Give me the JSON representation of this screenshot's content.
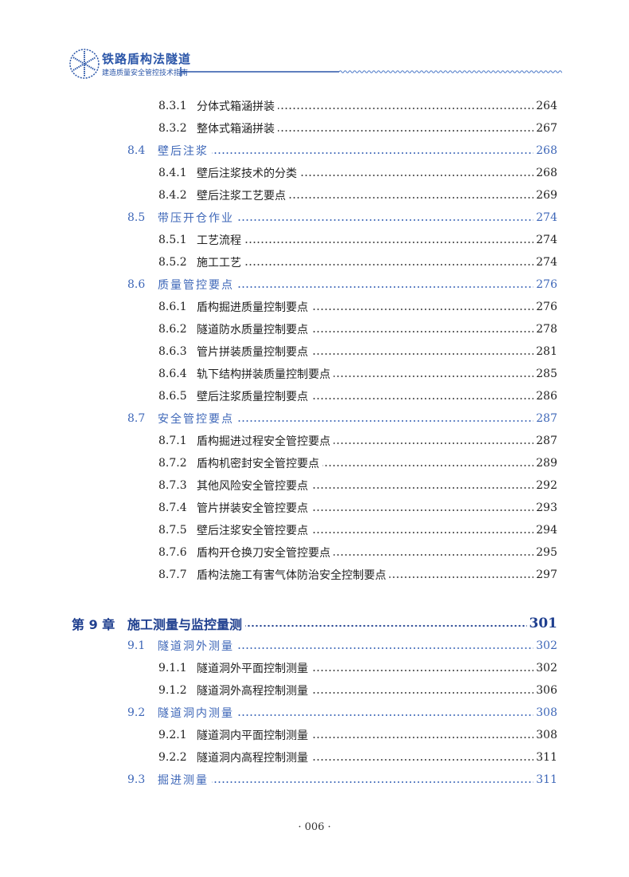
{
  "header": {
    "title": "铁路盾构法隧道",
    "subtitle": "建造质量安全管控技术指南",
    "logo_icon": "tunnel-segment-logo-icon",
    "accent_color": "#2a55a8"
  },
  "toc": [
    {
      "level": "sub",
      "num": "8.3.1",
      "title": "分体式箱涵拼装",
      "page": "264"
    },
    {
      "level": "sub",
      "num": "8.3.2",
      "title": "整体式箱涵拼装",
      "page": "267"
    },
    {
      "level": "sec",
      "num": "8.4",
      "title": "壁后注浆",
      "page": "268"
    },
    {
      "level": "sub",
      "num": "8.4.1",
      "title": "壁后注浆技术的分类",
      "page": "268"
    },
    {
      "level": "sub",
      "num": "8.4.2",
      "title": "壁后注浆工艺要点",
      "page": "269"
    },
    {
      "level": "sec",
      "num": "8.5",
      "title": "带压开仓作业",
      "page": "274"
    },
    {
      "level": "sub",
      "num": "8.5.1",
      "title": "工艺流程",
      "page": "274"
    },
    {
      "level": "sub",
      "num": "8.5.2",
      "title": "施工工艺",
      "page": "274"
    },
    {
      "level": "sec",
      "num": "8.6",
      "title": "质量管控要点",
      "page": "276"
    },
    {
      "level": "sub",
      "num": "8.6.1",
      "title": "盾构掘进质量控制要点",
      "page": "276"
    },
    {
      "level": "sub",
      "num": "8.6.2",
      "title": "隧道防水质量控制要点",
      "page": "278"
    },
    {
      "level": "sub",
      "num": "8.6.3",
      "title": "管片拼装质量控制要点",
      "page": "281"
    },
    {
      "level": "sub",
      "num": "8.6.4",
      "title": "轨下结构拼装质量控制要点",
      "page": "285"
    },
    {
      "level": "sub",
      "num": "8.6.5",
      "title": "壁后注浆质量控制要点",
      "page": "286"
    },
    {
      "level": "sec",
      "num": "8.7",
      "title": "安全管控要点",
      "page": "287"
    },
    {
      "level": "sub",
      "num": "8.7.1",
      "title": "盾构掘进过程安全管控要点",
      "page": "287"
    },
    {
      "level": "sub",
      "num": "8.7.2",
      "title": "盾构机密封安全管控要点",
      "page": "289"
    },
    {
      "level": "sub",
      "num": "8.7.3",
      "title": "其他风险安全管控要点",
      "page": "292"
    },
    {
      "level": "sub",
      "num": "8.7.4",
      "title": "管片拼装安全管控要点",
      "page": "293"
    },
    {
      "level": "sub",
      "num": "8.7.5",
      "title": "壁后注浆安全管控要点",
      "page": "294"
    },
    {
      "level": "sub",
      "num": "8.7.6",
      "title": "盾构开仓换刀安全管控要点",
      "page": "295"
    },
    {
      "level": "sub",
      "num": "8.7.7",
      "title": "盾构法施工有害气体防治安全控制要点",
      "page": "297"
    },
    {
      "level": "chap",
      "num": "第 9 章",
      "title": "施工测量与监控量测",
      "page": "301"
    },
    {
      "level": "sec",
      "num": "9.1",
      "title": "隧道洞外测量",
      "page": "302"
    },
    {
      "level": "sub",
      "num": "9.1.1",
      "title": "隧道洞外平面控制测量",
      "page": "302"
    },
    {
      "level": "sub",
      "num": "9.1.2",
      "title": "隧道洞外高程控制测量",
      "page": "306"
    },
    {
      "level": "sec",
      "num": "9.2",
      "title": "隧道洞内测量",
      "page": "308"
    },
    {
      "level": "sub",
      "num": "9.2.1",
      "title": "隧道洞内平面控制测量",
      "page": "308"
    },
    {
      "level": "sub",
      "num": "9.2.2",
      "title": "隧道洞内高程控制测量",
      "page": "311"
    },
    {
      "level": "sec",
      "num": "9.3",
      "title": "掘进测量",
      "page": "311"
    }
  ],
  "page_number": "· 006 ·"
}
